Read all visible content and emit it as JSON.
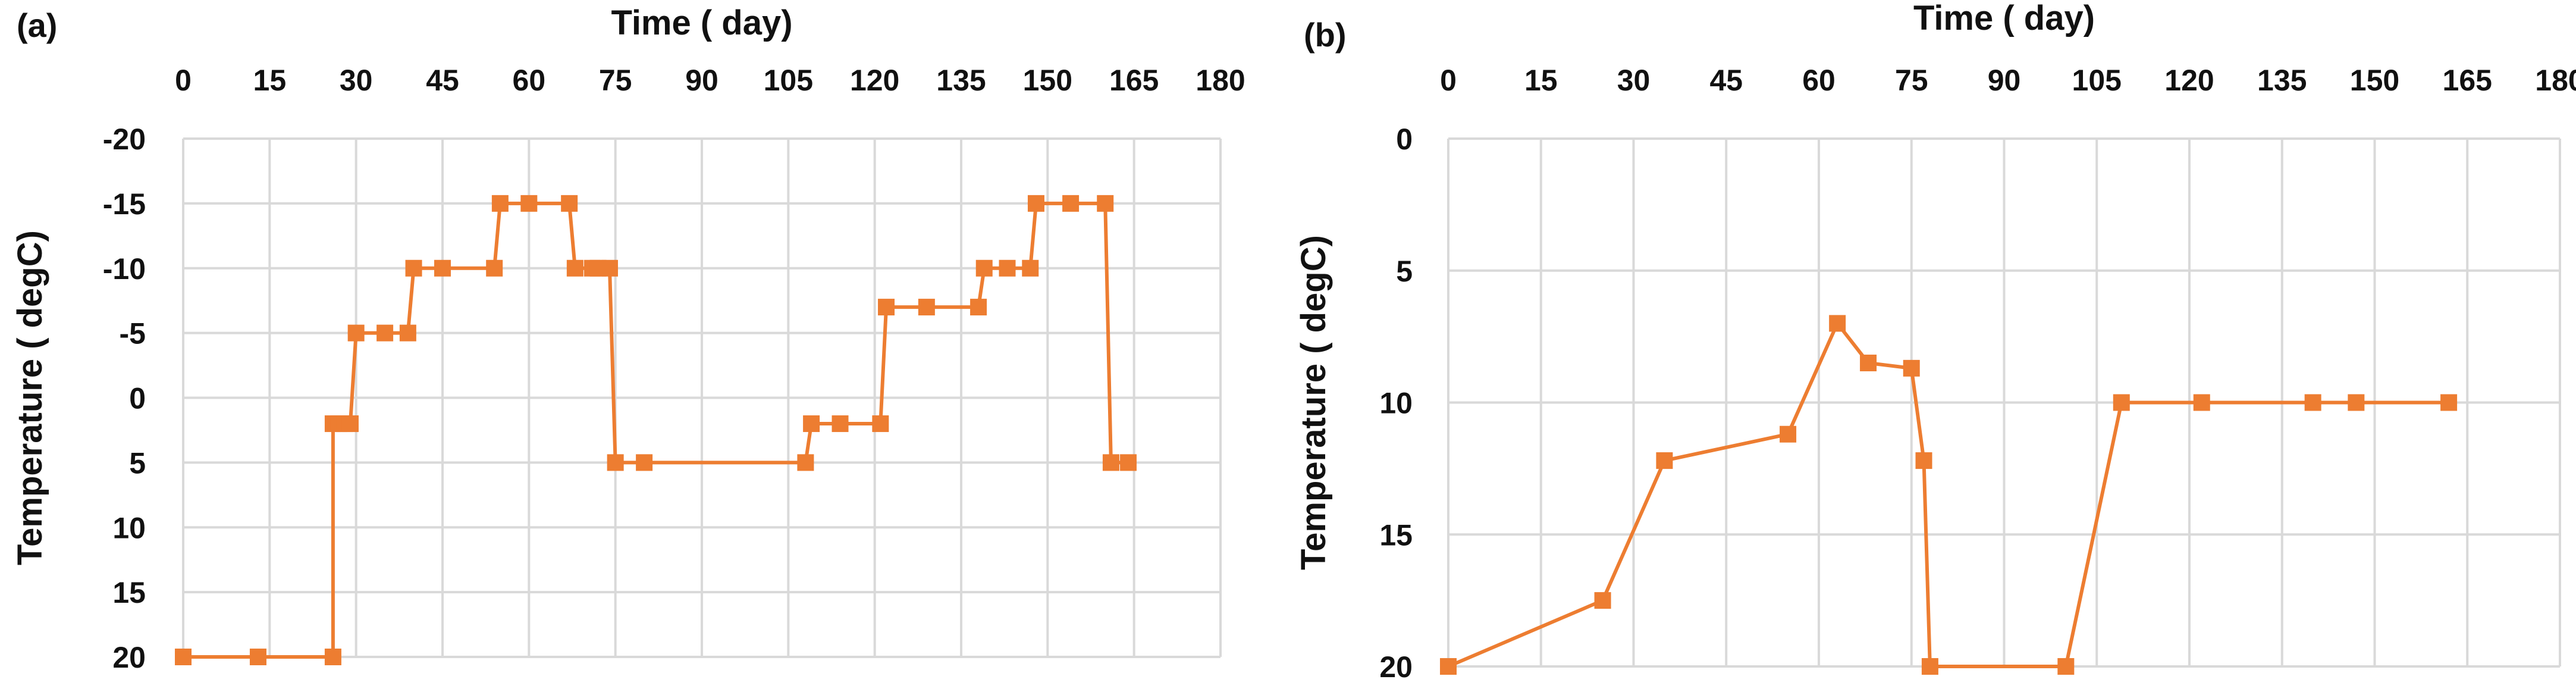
{
  "colors": {
    "series": "#ED7D31",
    "grid": "#D9D9D9",
    "text": "#111111"
  },
  "chart_data": [
    {
      "panel_label": "(a)",
      "type": "line",
      "xlabel": "Time ( day)",
      "ylabel": "Temperature ( degC)",
      "xlim": [
        0,
        180
      ],
      "ylim": [
        -20,
        20
      ],
      "y_reversed": true,
      "x_axis_position": "top",
      "grid": true,
      "legend": "none",
      "marker": "square",
      "xticks": [
        0,
        15,
        30,
        45,
        60,
        75,
        90,
        105,
        120,
        135,
        150,
        165,
        180
      ],
      "yticks": [
        -20,
        -15,
        -10,
        -5,
        0,
        5,
        10,
        15,
        20
      ],
      "ytick_labels": [
        "-20",
        "-15",
        "-10",
        "-5",
        "0",
        "5",
        "10",
        "15",
        "20"
      ],
      "series": [
        {
          "x": [
            0,
            13,
            26,
            26,
            27,
            28,
            29,
            30,
            35,
            39,
            40,
            45,
            54,
            55,
            60,
            67,
            68,
            71,
            72,
            74,
            75,
            80,
            108,
            109,
            114,
            121,
            122,
            129,
            138,
            139,
            143,
            147,
            148,
            154,
            160,
            161,
            164
          ],
          "y": [
            20,
            20,
            20,
            2,
            2,
            2,
            2,
            -5,
            -5,
            -5,
            -10,
            -10,
            -10,
            -15,
            -15,
            -15,
            -10,
            -10,
            -10,
            -10,
            5,
            5,
            5,
            2,
            2,
            2,
            -7,
            -7,
            -7,
            -10,
            -10,
            -10,
            -15,
            -15,
            -15,
            5,
            5
          ]
        }
      ]
    },
    {
      "panel_label": "(b)",
      "type": "line",
      "xlabel": "Time ( day)",
      "ylabel": "Temperature ( degC)",
      "xlim": [
        0,
        180
      ],
      "ylim": [
        0,
        20
      ],
      "y_reversed": true,
      "x_axis_position": "top",
      "grid": true,
      "legend": "none",
      "marker": "square",
      "xticks": [
        0,
        15,
        30,
        45,
        60,
        75,
        90,
        105,
        120,
        135,
        150,
        165,
        180
      ],
      "yticks": [
        0,
        5,
        10,
        15,
        20
      ],
      "ytick_labels": [
        "0",
        "5",
        "10",
        "15",
        "20"
      ],
      "series": [
        {
          "x": [
            0,
            25,
            35,
            55,
            63,
            68,
            75,
            77,
            78,
            100,
            109,
            122,
            140,
            147,
            162
          ],
          "y": [
            20,
            17.5,
            12.2,
            11.2,
            7,
            8.5,
            8.7,
            12.2,
            20,
            20,
            10,
            10,
            10,
            10,
            10
          ]
        }
      ]
    }
  ]
}
